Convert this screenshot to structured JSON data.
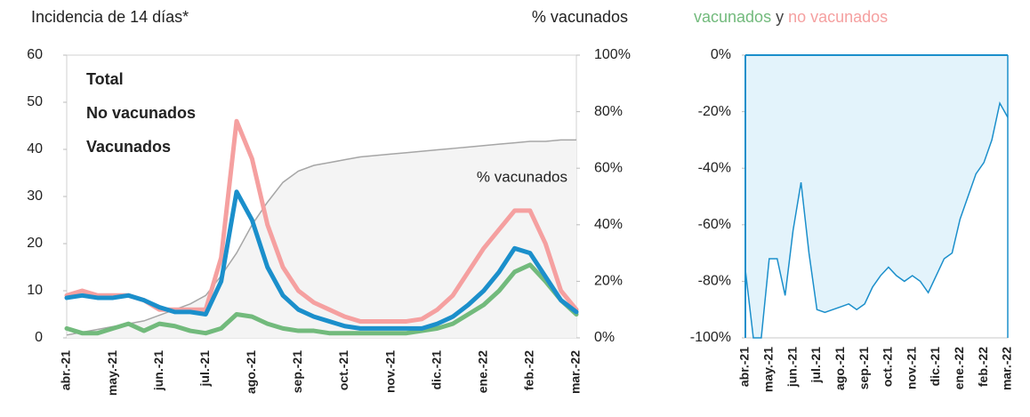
{
  "chart_data": [
    {
      "type": "line",
      "title": "Incidencia de 14 días*",
      "y2label": "% vacunados",
      "categories": [
        "abr.-21",
        null,
        null,
        "may.-21",
        null,
        null,
        "jun.-21",
        null,
        null,
        "jul.-21",
        null,
        null,
        "ago.-21",
        null,
        null,
        "sep.-21",
        null,
        null,
        "oct.-21",
        null,
        null,
        "nov.-21",
        null,
        null,
        "dic.-21",
        null,
        null,
        "ene.-22",
        null,
        null,
        "feb.-22",
        null,
        null,
        "mar.-22"
      ],
      "ylim": [
        0,
        60
      ],
      "yticks": [
        0,
        10,
        20,
        30,
        40,
        50,
        60
      ],
      "y2lim": [
        0,
        100
      ],
      "y2ticks": [
        {
          "value": 0,
          "label": "0%"
        },
        {
          "value": 20,
          "label": "20%"
        },
        {
          "value": 40,
          "label": "40%"
        },
        {
          "value": 60,
          "label": "60%"
        },
        {
          "value": 80,
          "label": "80%"
        },
        {
          "value": 100,
          "label": "100%"
        }
      ],
      "series": [
        {
          "name": "Total",
          "color": "#1b8fcb",
          "values": [
            8.5,
            9,
            8.5,
            8.5,
            9,
            8,
            6.5,
            5.5,
            5.5,
            5,
            12,
            31,
            25,
            15,
            9,
            6,
            4.5,
            3.5,
            2.5,
            2,
            2,
            2,
            2,
            2,
            3,
            4.5,
            7,
            10,
            14,
            19,
            18,
            13,
            8,
            5.5
          ]
        },
        {
          "name": "No vacunados",
          "color": "#f5a0a0",
          "values": [
            9,
            10,
            9,
            9,
            9,
            8,
            6,
            6,
            6,
            6,
            17,
            46,
            38,
            24,
            15,
            10,
            7.5,
            6,
            4.5,
            3.5,
            3.5,
            3.5,
            3.5,
            4,
            6,
            9,
            14,
            19,
            23,
            27,
            27,
            20,
            10,
            6
          ]
        },
        {
          "name": "Vacunados",
          "color": "#72ba7c",
          "values": [
            2,
            1,
            1,
            2,
            3,
            1.5,
            3,
            2.5,
            1.5,
            1,
            2,
            5,
            4.5,
            3,
            2,
            1.5,
            1.5,
            1,
            1,
            1,
            1,
            1,
            1,
            1.5,
            2,
            3,
            5,
            7,
            10,
            14,
            15.5,
            12,
            8,
            5
          ]
        },
        {
          "name": "% vacunados",
          "color": "#a6a6a6",
          "fill": "#f4f4f4",
          "axis": "y2",
          "values": [
            1,
            2,
            3,
            4,
            5,
            6,
            8,
            10,
            12,
            15,
            22,
            30,
            40,
            48,
            55,
            59,
            61,
            62,
            63,
            64,
            64.5,
            65,
            65.5,
            66,
            66.5,
            67,
            67.5,
            68,
            68.5,
            69,
            69.5,
            69.5,
            70,
            70
          ]
        }
      ]
    },
    {
      "type": "area",
      "title": [
        "vacunados",
        "y",
        "no vacunados"
      ],
      "title_colors": [
        "#72ba7c",
        "#444444",
        "#f5a0a0"
      ],
      "categories": [
        "abr.-21",
        null,
        null,
        "may.-21",
        null,
        null,
        "jun.-21",
        null,
        null,
        "jul.-21",
        null,
        null,
        "ago.-21",
        null,
        null,
        "sep.-21",
        null,
        null,
        "oct.-21",
        null,
        null,
        "nov.-21",
        null,
        null,
        "dic.-21",
        null,
        null,
        "ene.-22",
        null,
        null,
        "feb.-22",
        null,
        null,
        "mar.-22"
      ],
      "ylim": [
        -100,
        0
      ],
      "yticks": [
        {
          "value": 0,
          "label": "0%"
        },
        {
          "value": -20,
          "label": "-20%"
        },
        {
          "value": -40,
          "label": "-40%"
        },
        {
          "value": -60,
          "label": "-60%"
        },
        {
          "value": -80,
          "label": "-80%"
        },
        {
          "value": -100,
          "label": "-100%"
        }
      ],
      "color": "#1b8fcb",
      "fill": "#e3f3fb",
      "values": [
        -76,
        -100,
        -100,
        -72,
        -72,
        -85,
        -62,
        -45,
        -70,
        -90,
        -91,
        -90,
        -89,
        -88,
        -90,
        -88,
        -82,
        -78,
        -75,
        -78,
        -80,
        -78,
        -80,
        -84,
        -78,
        -72,
        -70,
        -58,
        -50,
        -42,
        -38,
        -30,
        -17,
        -22
      ]
    }
  ]
}
